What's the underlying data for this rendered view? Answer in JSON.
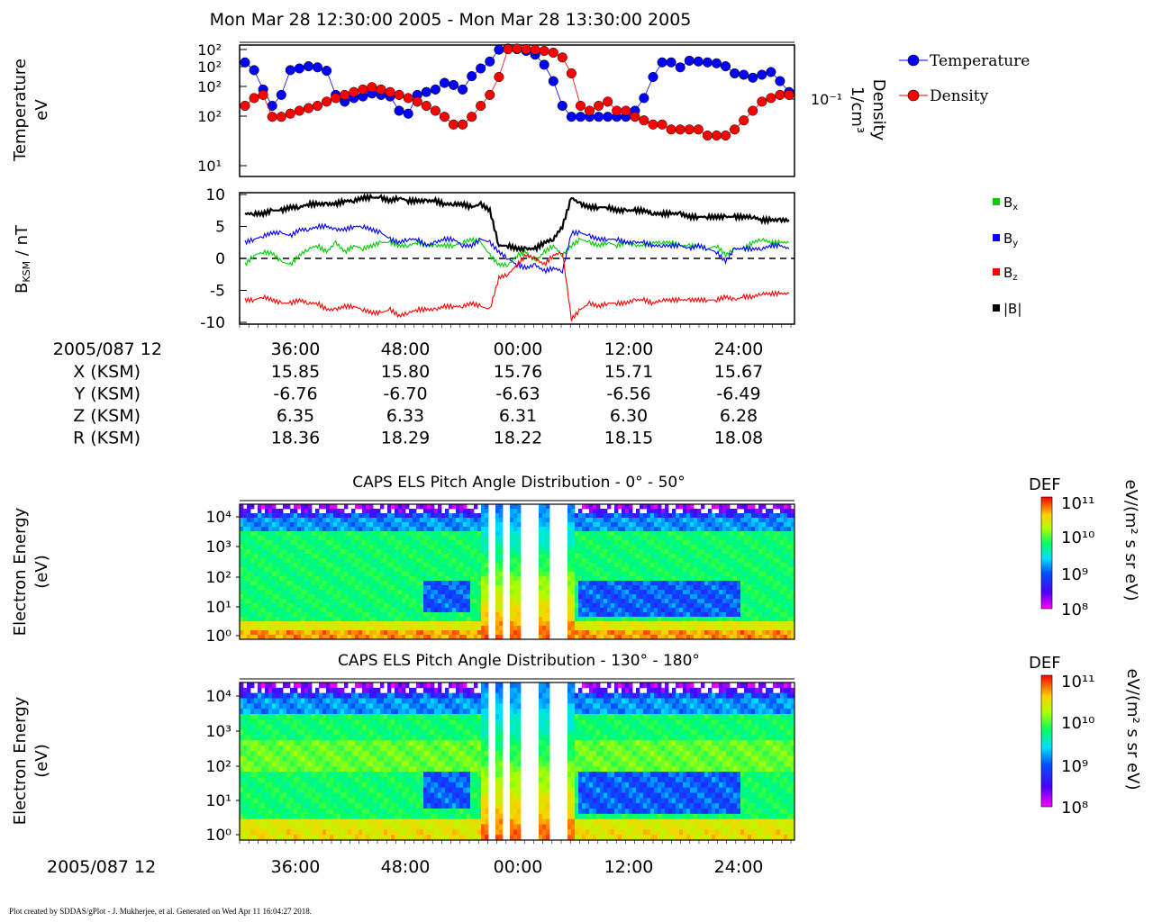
{
  "header": {
    "title": "Mon Mar 28 12:30:00 2005 - Mon Mar 28 13:30:00 2005"
  },
  "footer": {
    "text": "Plot created by SDDAS/gPlot - J. Mukherjee, et al.  Generated on Wed Apr 11 16:04:27 2018."
  },
  "colors": {
    "temperature": "#0000ff",
    "density": "#ff0000",
    "bx": "#00cc00",
    "by": "#0000ff",
    "bz": "#ff0000",
    "btot": "#000000"
  },
  "ephemeris": {
    "header": "2005/087 12",
    "ticks": [
      "36:00",
      "48:00",
      "00:00",
      "12:00",
      "24:00"
    ],
    "rows": [
      {
        "label": "X (KSM)",
        "values": [
          "15.85",
          "15.80",
          "15.76",
          "15.71",
          "15.67"
        ]
      },
      {
        "label": "Y (KSM)",
        "values": [
          "-6.76",
          "-6.70",
          "-6.63",
          "-6.56",
          "-6.49"
        ]
      },
      {
        "label": "Z (KSM)",
        "values": [
          "6.35",
          "6.33",
          "6.31",
          "6.30",
          "6.28"
        ]
      },
      {
        "label": "R (KSM)",
        "values": [
          "18.36",
          "18.29",
          "18.22",
          "18.15",
          "18.08"
        ]
      }
    ]
  },
  "bottom_axis": {
    "label": "2005/087 12",
    "ticks": [
      "36:00",
      "48:00",
      "00:00",
      "12:00",
      "24:00"
    ]
  },
  "chart_data": [
    {
      "type": "line",
      "ylabel": "Temperature\neV",
      "y2label": "Density\n1/cm³",
      "y_ticks": [
        "10²",
        "10²",
        "10²",
        "10²",
        "10¹"
      ],
      "y2_ticks": [
        "10⁻¹"
      ],
      "x": [
        0,
        1,
        2,
        3,
        4,
        5,
        6,
        7,
        8,
        9,
        10,
        11,
        12,
        13,
        14,
        15,
        16,
        17,
        18,
        19,
        20,
        21,
        22,
        23,
        24,
        25,
        26,
        27,
        28,
        29,
        30,
        31,
        32,
        33,
        34,
        35,
        36,
        37,
        38,
        39,
        40,
        41,
        42,
        43,
        44,
        45,
        46,
        47,
        48,
        49,
        50,
        51,
        52,
        53,
        54,
        55,
        56,
        57,
        58,
        59,
        60
      ],
      "series": [
        {
          "name": "Temperature",
          "marker": "circle",
          "color": "#0000ff",
          "values": [
            60,
            45,
            22,
            12,
            18,
            45,
            48,
            52,
            50,
            44,
            18,
            14,
            16,
            17,
            19,
            18,
            17,
            10,
            9,
            18,
            20,
            22,
            28,
            26,
            22,
            36,
            48,
            62,
            96,
            100,
            98,
            92,
            80,
            55,
            30,
            12,
            8,
            8,
            8,
            8,
            8,
            8,
            8,
            10,
            16,
            35,
            60,
            60,
            50,
            64,
            62,
            60,
            58,
            52,
            40,
            38,
            34,
            38,
            42,
            30,
            20
          ]
        },
        {
          "name": "Density",
          "marker": "circle",
          "color": "#ff0000",
          "values": [
            12,
            16,
            18,
            8,
            8,
            9,
            10,
            11,
            12,
            14,
            16,
            18,
            20,
            22,
            24,
            22,
            20,
            18,
            16,
            14,
            12,
            10,
            8,
            6,
            6,
            8,
            12,
            18,
            35,
            98,
            100,
            98,
            96,
            92,
            86,
            72,
            40,
            12,
            10,
            12,
            14,
            10,
            10,
            8,
            7,
            6,
            6,
            5,
            5,
            5,
            5,
            4,
            4,
            4,
            5,
            7,
            10,
            14,
            16,
            18,
            18
          ]
        }
      ]
    },
    {
      "type": "line",
      "ylabel": "B_KSM / nT",
      "ylim": [
        -10,
        10
      ],
      "y_ticks": [
        "10",
        "5",
        "0",
        "-5",
        "-10"
      ],
      "x": [
        0,
        1,
        2,
        3,
        4,
        5,
        6,
        7,
        8,
        9,
        10,
        11,
        12,
        13,
        14,
        15,
        16,
        17,
        18,
        19,
        20,
        21,
        22,
        23,
        24,
        25,
        26,
        27,
        28,
        29,
        30,
        31,
        32,
        33,
        34,
        35,
        36,
        37,
        38,
        39,
        40,
        41,
        42,
        43,
        44,
        45,
        46,
        47,
        48,
        49,
        50,
        51,
        52,
        53,
        54,
        55,
        56,
        57,
        58,
        59,
        60
      ],
      "series": [
        {
          "name": "Bx",
          "color": "#00cc00",
          "values": [
            -1.0,
            0.5,
            1.0,
            0.8,
            -0.5,
            -1.0,
            0.5,
            1.5,
            2.0,
            1.0,
            2.5,
            1.0,
            2.0,
            1.5,
            2.0,
            2.5,
            2.5,
            2.0,
            2.0,
            2.5,
            2.0,
            2.0,
            2.0,
            2.0,
            2.5,
            3.0,
            2.5,
            0.5,
            -1.0,
            -1.0,
            0.5,
            1.0,
            -0.5,
            1.0,
            2.0,
            0.5,
            2.0,
            3.0,
            2.5,
            2.0,
            2.5,
            2.0,
            2.5,
            2.0,
            2.0,
            2.5,
            2.5,
            2.5,
            2.0,
            2.0,
            2.0,
            1.5,
            2.0,
            0.5,
            1.5,
            1.5,
            2.5,
            3.0,
            2.5,
            2.5,
            2.5
          ]
        },
        {
          "name": "By",
          "color": "#0000ff",
          "values": [
            2.5,
            3.0,
            3.5,
            4.0,
            4.0,
            3.5,
            4.5,
            4.5,
            5.0,
            5.0,
            4.5,
            4.5,
            5.0,
            5.0,
            4.5,
            4.0,
            3.0,
            2.5,
            3.0,
            3.0,
            2.0,
            2.5,
            3.0,
            3.0,
            2.0,
            2.0,
            3.0,
            2.5,
            1.0,
            0.0,
            -1.0,
            -1.5,
            -1.0,
            -2.0,
            -1.5,
            -2.0,
            4.0,
            4.0,
            3.5,
            3.0,
            3.0,
            3.0,
            2.5,
            2.5,
            2.5,
            2.0,
            2.0,
            2.0,
            2.0,
            1.5,
            2.0,
            1.5,
            1.0,
            -0.5,
            1.5,
            1.5,
            1.5,
            1.5,
            2.0,
            2.0,
            1.5
          ]
        },
        {
          "name": "Bz",
          "color": "#ff0000",
          "values": [
            -6.5,
            -6.5,
            -6.0,
            -6.5,
            -7.0,
            -7.0,
            -6.5,
            -7.0,
            -7.0,
            -8.0,
            -8.0,
            -7.5,
            -7.5,
            -8.0,
            -8.5,
            -8.5,
            -8.0,
            -9.0,
            -8.5,
            -8.0,
            -8.0,
            -8.0,
            -7.5,
            -7.5,
            -7.5,
            -7.0,
            -7.5,
            -8.0,
            -3.0,
            -2.5,
            -1.0,
            0.5,
            0.0,
            -1.0,
            0.5,
            1.0,
            -9.5,
            -8.0,
            -7.0,
            -7.5,
            -7.0,
            -7.0,
            -7.0,
            -6.5,
            -6.5,
            -7.0,
            -6.5,
            -6.5,
            -6.5,
            -6.5,
            -6.5,
            -6.5,
            -6.5,
            -6.0,
            -6.5,
            -6.0,
            -6.0,
            -5.5,
            -5.5,
            -5.5,
            -5.5
          ]
        },
        {
          "name": "|B|",
          "color": "#000000",
          "values": [
            7.0,
            7.0,
            7.0,
            7.5,
            7.5,
            8.0,
            8.0,
            8.5,
            8.5,
            8.5,
            8.5,
            9.0,
            9.0,
            9.5,
            9.5,
            9.5,
            9.0,
            9.5,
            9.0,
            9.0,
            9.0,
            9.0,
            8.5,
            8.5,
            8.5,
            8.0,
            8.5,
            7.5,
            2.0,
            2.0,
            1.5,
            1.5,
            1.5,
            2.5,
            3.0,
            5.0,
            9.5,
            8.5,
            8.0,
            8.0,
            8.0,
            7.5,
            7.5,
            7.5,
            7.5,
            7.0,
            7.0,
            7.0,
            7.0,
            6.5,
            6.5,
            6.5,
            6.5,
            6.5,
            6.5,
            6.5,
            6.5,
            6.0,
            6.0,
            6.0,
            6.0
          ]
        }
      ]
    },
    {
      "type": "heatmap",
      "title": "CAPS ELS Pitch Angle Distribution - 0° - 50°",
      "ylabel": "Electron Energy\n(eV)",
      "y_ticks": [
        "10⁴",
        "10³",
        "10²",
        "10¹",
        "10⁰"
      ],
      "colorbar": {
        "label": "DEF",
        "units": "eV/(m² s sr eV)",
        "ticks": [
          "10¹¹",
          "10¹⁰",
          "10⁹",
          "10⁸"
        ]
      }
    },
    {
      "type": "heatmap",
      "title": "CAPS ELS Pitch Angle Distribution - 130° - 180°",
      "ylabel": "Electron Energy\n(eV)",
      "y_ticks": [
        "10⁴",
        "10³",
        "10²",
        "10¹",
        "10⁰"
      ],
      "colorbar": {
        "label": "DEF",
        "units": "eV/(m² s sr eV)",
        "ticks": [
          "10¹¹",
          "10¹⁰",
          "10⁹",
          "10⁸"
        ]
      }
    }
  ]
}
